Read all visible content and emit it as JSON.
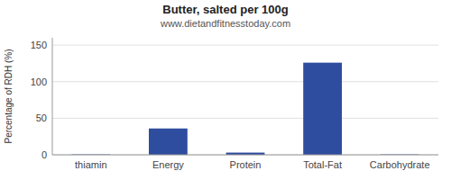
{
  "chart_data": {
    "type": "bar",
    "title": "Butter, salted per 100g",
    "subtitle": "www.dietandfitnesstoday.com",
    "categories": [
      "thiamin",
      "Energy",
      "Protein",
      "Total-Fat",
      "Carbohydrate"
    ],
    "values": [
      0.5,
      36,
      3,
      126,
      0.5
    ],
    "color": "#2e4d9e",
    "ylabel": "Percentage of RDH (%)",
    "ylim": [
      0,
      160
    ],
    "yticks": [
      0,
      50,
      100,
      150
    ],
    "grid": true
  }
}
